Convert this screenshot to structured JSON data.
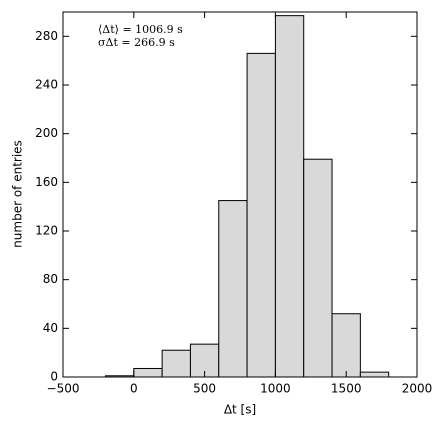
{
  "chart_data": {
    "type": "histogram",
    "xlabel": "Δt [s]",
    "ylabel": "number of entries",
    "annotations": [
      "⟨Δt⟩ = 1006.9 s",
      "σΔt = 266.9 s"
    ],
    "bins": [
      -200,
      0,
      200,
      400,
      600,
      800,
      1000,
      1200,
      1400,
      1600,
      1800
    ],
    "values": [
      1,
      7,
      22,
      27,
      145,
      266,
      297,
      179,
      52,
      4
    ],
    "color": "#d9d9d9",
    "xlim": [
      -500,
      2000
    ],
    "xticks": [
      {
        "value": -500,
        "label": "−500"
      },
      0,
      500,
      1000,
      1500,
      2000
    ],
    "ylim": [
      0,
      300
    ],
    "yticks": [
      0,
      40,
      80,
      120,
      160,
      200,
      240,
      280
    ]
  }
}
